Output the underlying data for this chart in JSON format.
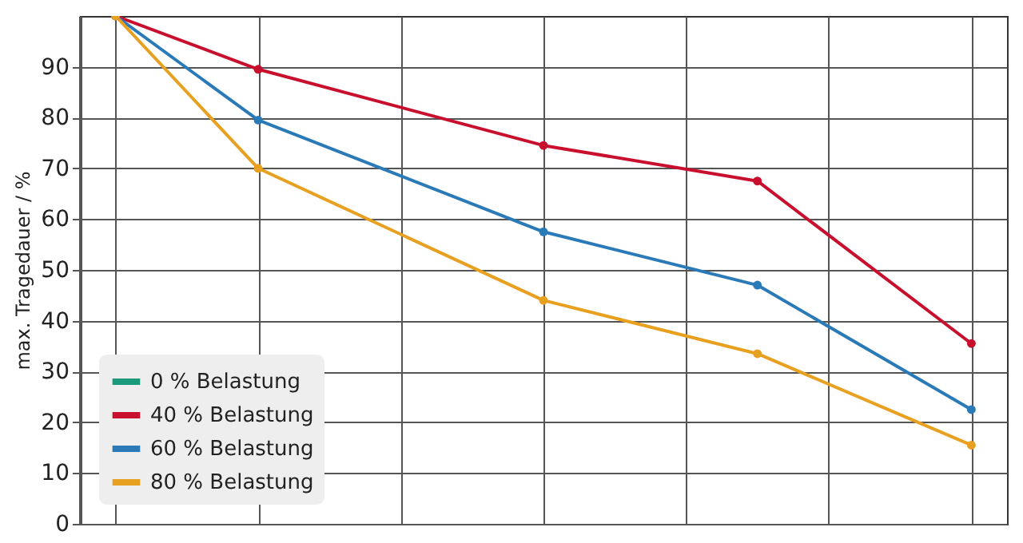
{
  "chart_data": {
    "type": "line",
    "ylabel": "max. Tragedauer / %",
    "categories": [
      null,
      null,
      null,
      null,
      null,
      null,
      null,
      null,
      null,
      null,
      null,
      null,
      null
    ],
    "ylim": [
      0,
      100
    ],
    "yticks": [
      0,
      10,
      20,
      30,
      40,
      50,
      60,
      70,
      80,
      90
    ],
    "series": [
      {
        "name": "0 % Belastung",
        "color": "#1a9a7a",
        "values": [
          null,
          null,
          null,
          null,
          null,
          null,
          null,
          null,
          null,
          null,
          null,
          null,
          null
        ]
      },
      {
        "name": "40 % Belastung",
        "color": "#c8102e",
        "values": [
          100,
          null,
          89.5,
          null,
          null,
          null,
          74.5,
          null,
          null,
          67.5,
          null,
          null,
          35.5
        ]
      },
      {
        "name": "60 % Belastung",
        "color": "#2a7ab8",
        "values": [
          100,
          null,
          79.5,
          null,
          null,
          null,
          57.5,
          null,
          null,
          47,
          null,
          null,
          22.5
        ]
      },
      {
        "name": "80 % Belastung",
        "color": "#e8a020",
        "values": [
          100,
          null,
          70,
          null,
          null,
          null,
          44,
          null,
          null,
          33.5,
          null,
          null,
          15.5
        ]
      }
    ],
    "grid": true,
    "legend": "bottom left",
    "marker": "circle"
  }
}
